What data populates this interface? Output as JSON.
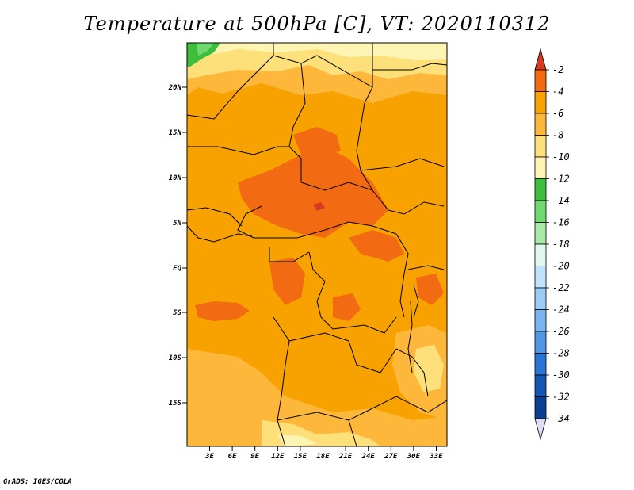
{
  "title": "Temperature at 500hPa [C], VT: 2020110312",
  "credit": "GrADS: IGES/COLA",
  "map": {
    "lat_labels": [
      "20N",
      "15N",
      "10N",
      "5N",
      "EQ",
      "5S",
      "10S",
      "15S"
    ],
    "lon_labels": [
      "3E",
      "6E",
      "9E",
      "12E",
      "15E",
      "18E",
      "21E",
      "24E",
      "27E",
      "30E",
      "33E"
    ]
  },
  "colorbar": {
    "labels": [
      "-2",
      "-4",
      "-6",
      "-8",
      "-10",
      "-12",
      "-14",
      "-16",
      "-18",
      "-20",
      "-22",
      "-24",
      "-26",
      "-28",
      "-30",
      "-32",
      "-34"
    ],
    "colors": {
      "gt_-2": "#d83a1f",
      "-2_-4": "#f26a12",
      "-4_-6": "#f7a201",
      "-6_-8": "#fdb83b",
      "-8_-10": "#fde07a",
      "-10_-12": "#fef4b4",
      "-12_-14": "#3dbf3d",
      "-14_-16": "#6fd96f",
      "-16_-18": "#a8e8a8",
      "-18_-20": "#dff7ef",
      "-20_-22": "#bfe3fb",
      "-22_-24": "#9ccbf5",
      "-24_-26": "#78b4ee",
      "-26_-28": "#4f97e4",
      "-28_-30": "#2a74d6",
      "-30_-32": "#1656b5",
      "-32_-34": "#0b3f93",
      "lt_-34": "#0a1a6e",
      "below_tip": "#dcdcf5"
    }
  }
}
